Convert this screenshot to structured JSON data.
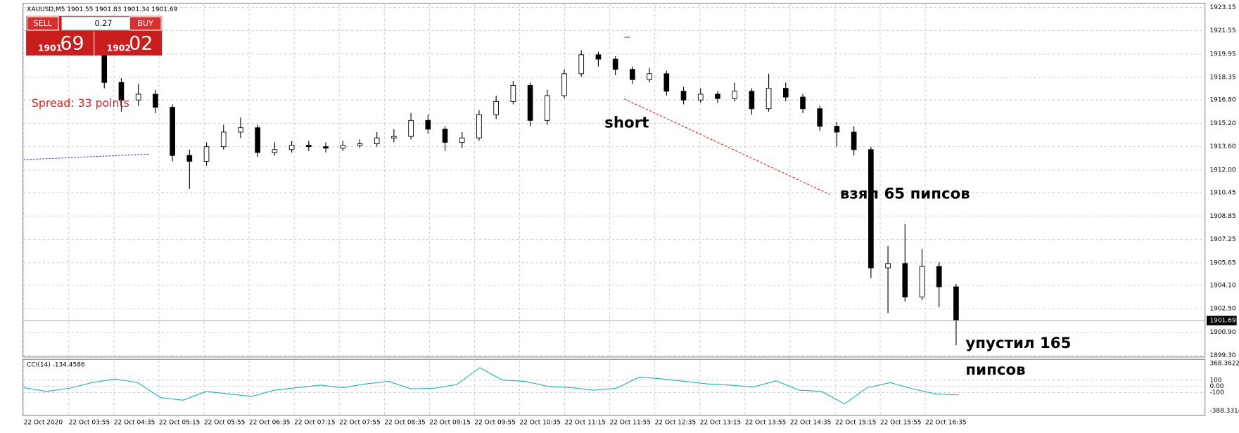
{
  "chart_data": {
    "type": "candlestick",
    "title": "XAUUSD,M5  1901.55 1901.83 1901.34 1901.69",
    "categories": [
      "22 Oct 2020",
      "22 Oct 03:55",
      "22 Oct 04:35",
      "22 Oct 05:15",
      "22 Oct 05:55",
      "22 Oct 06:35",
      "22 Oct 07:15",
      "22 Oct 07:55",
      "22 Oct 08:35",
      "22 Oct 09:15",
      "22 Oct 09:55",
      "22 Oct 10:35",
      "22 Oct 11:15",
      "22 Oct 11:55",
      "22 Oct 12:35",
      "22 Oct 13:15",
      "22 Oct 13:55",
      "22 Oct 14:35",
      "22 Oct 15:15",
      "22 Oct 15:55",
      "22 Oct 16:35"
    ],
    "ylim": [
      1899.3,
      1923.15
    ],
    "yticks": [
      1923.15,
      1921.55,
      1919.95,
      1918.35,
      {
        "value": 1916.8,
        "label": "1916.80"
      },
      {
        "value": 1915.2,
        "label": "1915.20"
      },
      {
        "value": 1913.6,
        "label": "1913.60"
      },
      {
        "value": 1912.0,
        "label": "1912.00"
      },
      1910.45,
      1908.85,
      1907.25,
      1905.65,
      {
        "value": 1904.1,
        "label": "1904.10"
      },
      {
        "value": 1902.5,
        "label": "1902.50"
      },
      {
        "value": 1900.9,
        "label": "1900.90"
      },
      {
        "value": 1899.3,
        "label": "1899.30"
      }
    ],
    "grid": true,
    "last_price": 1901.69,
    "candles": {
      "open": [
        1919.9,
        1918.0,
        1916.8,
        1917.2,
        1916.3,
        1913.0,
        1912.6,
        1913.6,
        1914.6,
        1914.9,
        1913.2,
        1913.4,
        1913.7,
        1913.6,
        1913.5,
        1913.7,
        1913.8,
        1914.2,
        1914.3,
        1915.4,
        1914.8,
        1913.9,
        1914.2,
        1915.8,
        1916.7,
        1917.8,
        1915.4,
        1917.1,
        1918.6,
        1919.9,
        1919.6,
        1918.9,
        1918.2,
        1918.6,
        1917.4,
        1916.8,
        1917.2,
        1916.9,
        1917.4,
        1916.2,
        1917.6,
        1917.0,
        1916.2,
        1915.0,
        1914.6,
        1913.4,
        1905.3,
        1905.6,
        1903.3,
        1905.4,
        1904.0
      ],
      "high": [
        1920.2,
        1918.3,
        1917.9,
        1917.5,
        1916.5,
        1913.4,
        1913.9,
        1915.1,
        1915.6,
        1915.1,
        1913.9,
        1914.0,
        1914.0,
        1913.9,
        1914.0,
        1914.1,
        1914.6,
        1914.8,
        1915.9,
        1915.8,
        1915.0,
        1914.6,
        1916.1,
        1917.1,
        1918.1,
        1918.0,
        1917.5,
        1918.9,
        1920.2,
        1920.1,
        1919.8,
        1919.1,
        1919.0,
        1918.8,
        1917.7,
        1917.6,
        1917.4,
        1918.0,
        1917.6,
        1918.6,
        1918.0,
        1917.2,
        1916.4,
        1915.3,
        1915.0,
        1913.6,
        1906.8,
        1908.3,
        1906.6,
        1905.7,
        1904.2
      ],
      "low": [
        1917.6,
        1916.0,
        1916.4,
        1915.9,
        1912.6,
        1910.7,
        1912.3,
        1913.4,
        1914.2,
        1912.9,
        1913.0,
        1913.2,
        1913.3,
        1913.2,
        1913.3,
        1913.5,
        1913.6,
        1913.9,
        1914.1,
        1914.5,
        1913.3,
        1913.5,
        1914.0,
        1915.5,
        1916.5,
        1915.0,
        1915.1,
        1916.9,
        1918.4,
        1919.1,
        1918.5,
        1917.9,
        1918.0,
        1917.1,
        1916.5,
        1916.6,
        1916.6,
        1916.7,
        1915.8,
        1916.0,
        1916.7,
        1915.9,
        1914.7,
        1913.6,
        1913.0,
        1904.6,
        1902.2,
        1903.0,
        1903.1,
        1902.6,
        1900.0
      ],
      "close": [
        1918.0,
        1916.8,
        1917.2,
        1916.3,
        1913.0,
        1912.6,
        1913.6,
        1914.6,
        1914.9,
        1913.2,
        1913.4,
        1913.7,
        1913.6,
        1913.5,
        1913.7,
        1913.8,
        1914.2,
        1914.3,
        1915.4,
        1914.8,
        1913.9,
        1914.2,
        1915.8,
        1916.7,
        1917.8,
        1915.4,
        1917.1,
        1918.6,
        1919.9,
        1919.6,
        1918.9,
        1918.2,
        1918.6,
        1917.4,
        1916.8,
        1917.2,
        1916.9,
        1917.4,
        1916.2,
        1917.6,
        1917.0,
        1916.2,
        1915.0,
        1914.6,
        1913.4,
        1905.3,
        1905.6,
        1903.3,
        1905.4,
        1904.0,
        1901.7
      ]
    },
    "indicator": {
      "title": "CCI(14) -134.4586",
      "color": "#20b2aa",
      "ylim": [
        -388.3314,
        368.3622
      ],
      "yticks": [
        368.3622,
        100,
        {
          "value": 0,
          "label": "0.00"
        },
        -100,
        -388.3314
      ],
      "values": [
        -20,
        -80,
        -30,
        60,
        120,
        60,
        -180,
        -220,
        -80,
        -120,
        -160,
        -60,
        -20,
        20,
        -20,
        40,
        80,
        -40,
        -30,
        30,
        300,
        100,
        80,
        0,
        -20,
        -60,
        -30,
        150,
        120,
        80,
        40,
        20,
        -10,
        90,
        -60,
        -80,
        -280,
        -20,
        60,
        -40,
        -120,
        -134.4586
      ]
    },
    "annotations": [
      "Spread: 33 points",
      "short",
      "взял 65 пипсов",
      "упустил 165",
      "пипсов"
    ]
  },
  "trade_panel": {
    "sell": "SELL",
    "buy": "BUY",
    "lot": "0.27",
    "bid_big": "1901",
    "bid_small": "69",
    "ask_big": "1902",
    "ask_small": "02"
  }
}
